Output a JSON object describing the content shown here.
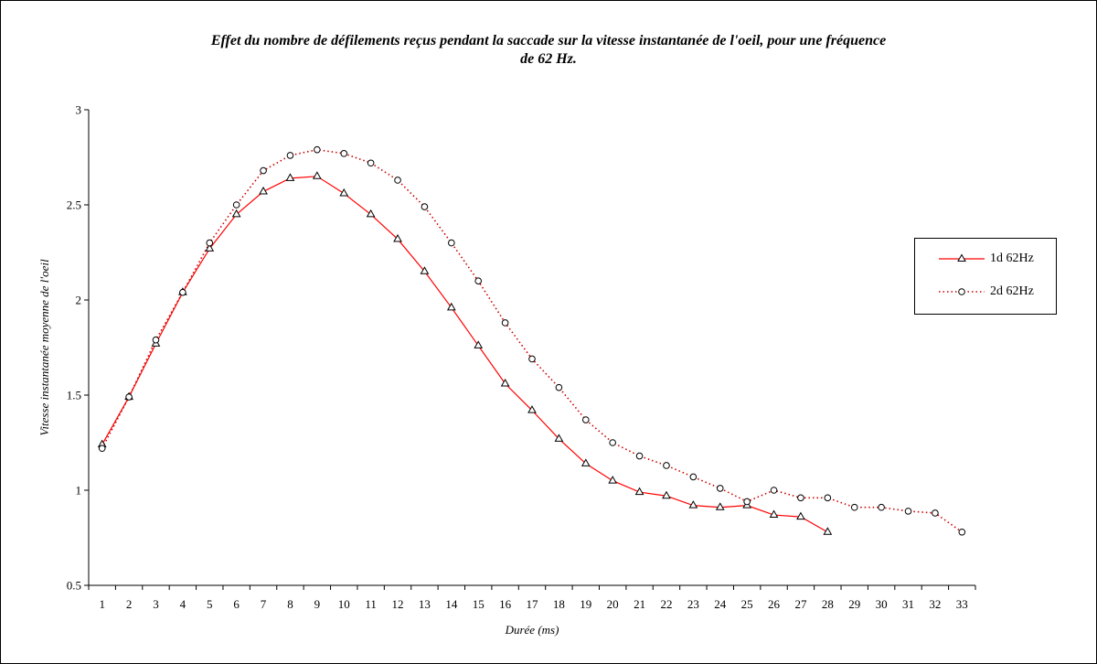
{
  "chart_data": {
    "type": "line",
    "title_line1": "Effet du nombre de défilements reçus pendant la saccade sur la vitesse instantanée de l'oeil, pour une fréquence",
    "title_line2": "de 62 Hz.",
    "xlabel": "Durée (ms)",
    "ylabel": "Vitesse instantanée moyenne de l'oeil",
    "x_ticks": [
      "1",
      "2",
      "3",
      "4",
      "5",
      "6",
      "7",
      "8",
      "9",
      "10",
      "11",
      "12",
      "13",
      "14",
      "15",
      "16",
      "17",
      "18",
      "19",
      "20",
      "21",
      "22",
      "23",
      "24",
      "25",
      "26",
      "27",
      "28",
      "29",
      "30",
      "31",
      "32",
      "33"
    ],
    "y_ticks": [
      "0.5",
      "1",
      "1.5",
      "2",
      "2.5",
      "3"
    ],
    "ylim": [
      0.5,
      3
    ],
    "grid": false,
    "legend_position": "right",
    "series": [
      {
        "name": "1d 62Hz",
        "color": "#ff0000",
        "line_style": "solid",
        "marker": "triangle",
        "x": [
          1,
          2,
          3,
          4,
          5,
          6,
          7,
          8,
          9,
          10,
          11,
          12,
          13,
          14,
          15,
          16,
          17,
          18,
          19,
          20,
          21,
          22,
          23,
          24,
          25,
          26,
          27,
          28
        ],
        "values": [
          1.24,
          1.49,
          1.77,
          2.04,
          2.27,
          2.45,
          2.57,
          2.64,
          2.65,
          2.56,
          2.45,
          2.32,
          2.15,
          1.96,
          1.76,
          1.56,
          1.42,
          1.27,
          1.14,
          1.05,
          0.99,
          0.97,
          0.92,
          0.91,
          0.92,
          0.87,
          0.86,
          0.78
        ]
      },
      {
        "name": "2d 62Hz",
        "color": "#cc0000",
        "line_style": "dotted",
        "marker": "circle",
        "x": [
          1,
          2,
          3,
          4,
          5,
          6,
          7,
          8,
          9,
          10,
          11,
          12,
          13,
          14,
          15,
          16,
          17,
          18,
          19,
          20,
          21,
          22,
          23,
          24,
          25,
          26,
          27,
          28,
          29,
          30,
          31,
          32,
          33
        ],
        "values": [
          1.22,
          1.49,
          1.79,
          2.04,
          2.3,
          2.5,
          2.68,
          2.76,
          2.79,
          2.77,
          2.72,
          2.63,
          2.49,
          2.3,
          2.1,
          1.88,
          1.69,
          1.54,
          1.37,
          1.25,
          1.18,
          1.13,
          1.07,
          1.01,
          0.94,
          1.0,
          0.96,
          0.96,
          0.91,
          0.91,
          0.89,
          0.88,
          0.78
        ]
      }
    ]
  }
}
